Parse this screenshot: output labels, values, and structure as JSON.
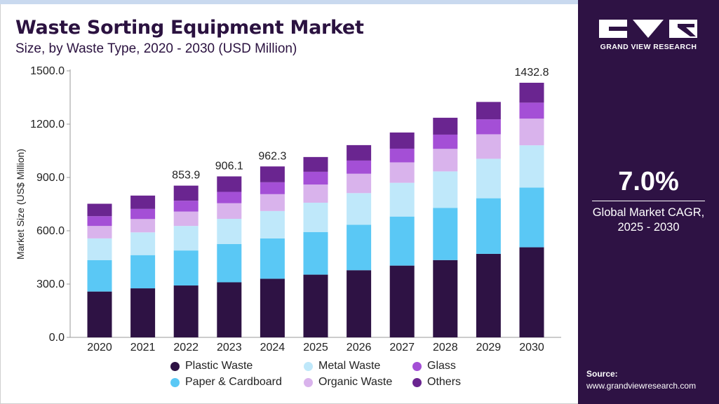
{
  "title": "Waste Sorting Equipment Market",
  "subtitle": "Size, by Waste Type, 2020 - 2030 (USD Million)",
  "brand": {
    "name": "GRAND VIEW RESEARCH"
  },
  "cagr": {
    "value": "7.0%",
    "label_line1": "Global Market CAGR,",
    "label_line2": "2025 - 2030"
  },
  "source": {
    "label": "Source:",
    "url": "www.grandviewresearch.com"
  },
  "colors": {
    "panel": "#2e1244",
    "plastic": "#2e1244",
    "paper": "#5ac8f5",
    "metal": "#bfe8fa",
    "organic": "#d9b3ec",
    "glass": "#a44fd6",
    "others": "#6a2590"
  },
  "chart_data": {
    "type": "bar",
    "stacked": true,
    "title": "Waste Sorting Equipment Market",
    "ylabel": "Market Size (US$ Million)",
    "xlabel": "",
    "ylim": [
      0,
      1500
    ],
    "yticks": [
      "0.0",
      "300.0",
      "600.0",
      "900.0",
      "1200.0",
      "1500.0"
    ],
    "categories": [
      "2020",
      "2021",
      "2022",
      "2023",
      "2024",
      "2025",
      "2026",
      "2027",
      "2028",
      "2029",
      "2030"
    ],
    "series": [
      {
        "name": "Plastic Waste",
        "color": "#2e1244",
        "values": [
          258,
          276,
          292,
          310,
          330,
          353,
          378,
          404,
          435,
          470,
          507
        ]
      },
      {
        "name": "Paper & Cardboard",
        "color": "#5ac8f5",
        "values": [
          177,
          187,
          197,
          215,
          227,
          240,
          256,
          276,
          294,
          313,
          336
        ]
      },
      {
        "name": "Metal Waste",
        "color": "#bfe8fa",
        "values": [
          122,
          128,
          138,
          142,
          154,
          165,
          178,
          190,
          205,
          222,
          238
        ]
      },
      {
        "name": "Organic Waste",
        "color": "#d9b3ec",
        "values": [
          70,
          75,
          81,
          88,
          95,
          102,
          109,
          115,
          127,
          138,
          150
        ]
      },
      {
        "name": "Glass",
        "color": "#a44fd6",
        "values": [
          55,
          57,
          61,
          64,
          67,
          72,
          74,
          77,
          80,
          84,
          90
        ]
      },
      {
        "name": "Others",
        "color": "#6a2590",
        "values": [
          70,
          75,
          85,
          87,
          89,
          83,
          87,
          91,
          95,
          98,
          112
        ]
      }
    ],
    "annotations": [
      {
        "category": "2022",
        "label": "853.9"
      },
      {
        "category": "2023",
        "label": "906.1"
      },
      {
        "category": "2024",
        "label": "962.3"
      },
      {
        "category": "2030",
        "label": "1432.8"
      }
    ],
    "legend": "bottom"
  }
}
